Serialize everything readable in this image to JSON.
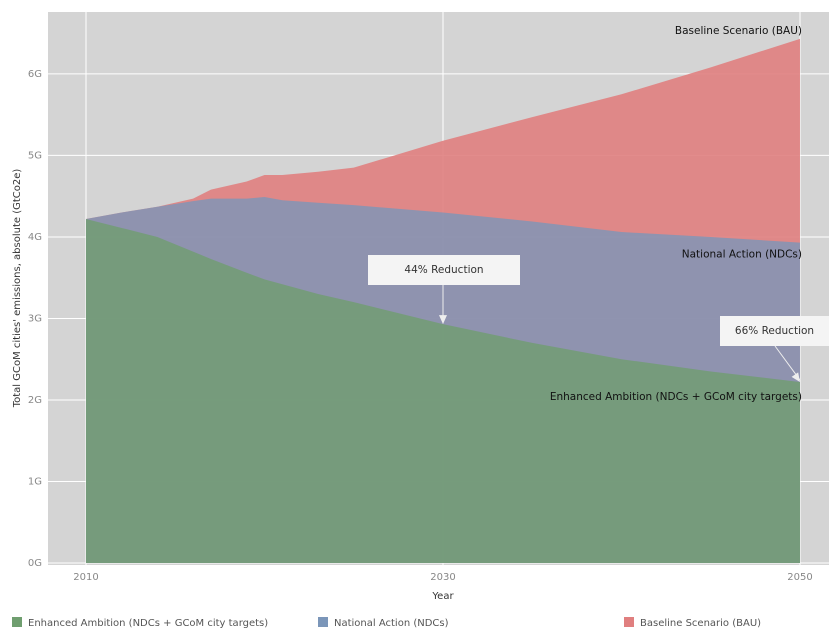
{
  "chart_data": {
    "type": "area",
    "y_label": "Total GCoM cities' emissions, absolute (GtCo2e)",
    "x_label": "Year",
    "x": [
      2010,
      2012,
      2014,
      2016,
      2017,
      2019,
      2020,
      2021,
      2023,
      2025,
      2030,
      2035,
      2040,
      2045,
      2050
    ],
    "series": [
      {
        "name": "Baseline Scenario (BAU)",
        "color": "#e07f7f",
        "values": [
          4.22,
          4.3,
          4.37,
          4.47,
          4.58,
          4.68,
          4.76,
          4.76,
          4.8,
          4.85,
          5.18,
          5.47,
          5.75,
          6.08,
          6.43
        ]
      },
      {
        "name": "National Action (NDCs)",
        "color": "#7b96b9",
        "values": [
          4.22,
          4.3,
          4.37,
          4.44,
          4.47,
          4.47,
          4.49,
          4.45,
          4.42,
          4.39,
          4.3,
          4.19,
          4.06,
          4.0,
          3.93
        ]
      },
      {
        "name": "Enhanced Ambition (NDCs + GCoM city targets)",
        "color": "#6f9e6f",
        "values": [
          4.22,
          4.11,
          4.0,
          3.82,
          3.73,
          3.56,
          3.48,
          3.42,
          3.3,
          3.2,
          2.93,
          2.7,
          2.5,
          2.35,
          2.22
        ]
      }
    ],
    "xlim": [
      2010,
      2050
    ],
    "xticks": [
      2010,
      2030,
      2050
    ],
    "ylim": [
      0,
      6.6
    ],
    "yticks": [
      {
        "value": 0,
        "label": "0G"
      },
      {
        "value": 1,
        "label": "1G"
      },
      {
        "value": 2,
        "label": "2G"
      },
      {
        "value": 3,
        "label": "3G"
      },
      {
        "value": 4,
        "label": "4G"
      },
      {
        "value": 5,
        "label": "5G"
      },
      {
        "value": 6,
        "label": "6G"
      }
    ],
    "grid": true,
    "annotations": [
      {
        "text": "44% Reduction"
      },
      {
        "text": "66% Reduction"
      }
    ]
  }
}
